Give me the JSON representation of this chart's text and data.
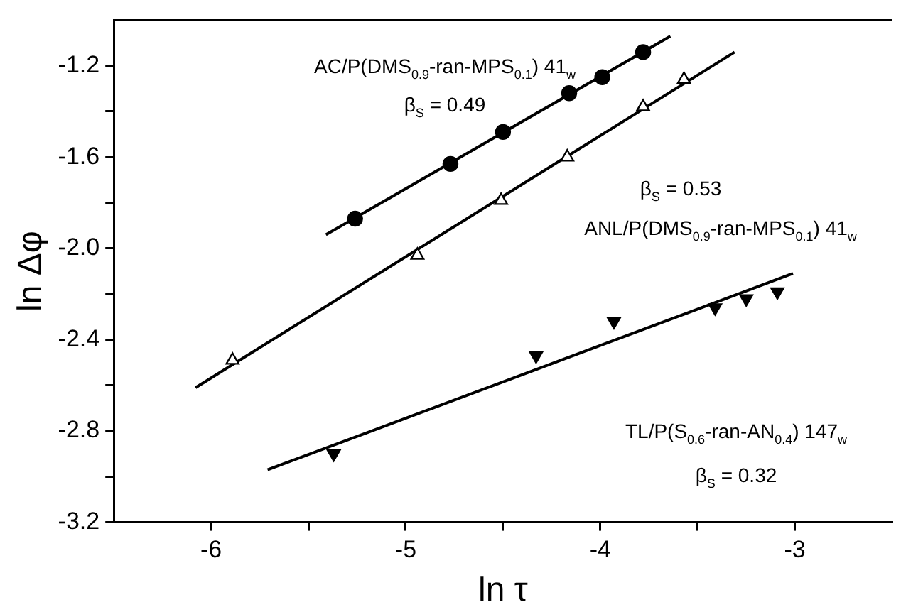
{
  "chart_data": {
    "type": "scatter",
    "xlabel": "ln τ",
    "ylabel": "ln Δφ",
    "xlim": [
      -6.5,
      -2.5
    ],
    "ylim": [
      -3.2,
      -1.0
    ],
    "xticks": [
      -6,
      {
        "value": -5.5,
        "label": null
      },
      -5,
      {
        "value": -4.5,
        "label": null
      },
      -4,
      {
        "value": -3.5,
        "label": null
      },
      -3
    ],
    "yticks": [
      -3.2,
      {
        "value": -3.0,
        "label": null
      },
      -2.8,
      {
        "value": -2.6,
        "label": null
      },
      -2.4,
      {
        "value": -2.2,
        "label": null
      },
      {
        "value": -2.0,
        "label": "-2.0"
      },
      {
        "value": -1.8,
        "label": null
      },
      -1.6,
      {
        "value": -1.4,
        "label": null
      },
      -1.2
    ],
    "grid": false,
    "legend": false,
    "series": [
      {
        "marker": "circle",
        "color": "#000000",
        "x": [
          -5.26,
          -4.77,
          -4.5,
          -4.16,
          -3.99,
          -3.78
        ],
        "values": [
          -1.87,
          -1.63,
          -1.49,
          -1.32,
          -1.25,
          -1.14
        ]
      },
      {
        "marker": "triangle",
        "color": "#000000",
        "x": [
          -5.89,
          -4.94,
          -4.51,
          -4.17,
          -3.78,
          -3.57
        ],
        "values": [
          -2.49,
          -2.03,
          -1.79,
          -1.6,
          -1.38,
          -1.26
        ]
      },
      {
        "marker": "triangle",
        "color": "#000000",
        "x": [
          -5.37,
          -4.33,
          -3.93,
          -3.41,
          -3.25,
          -3.09
        ],
        "values": [
          -2.9,
          -2.47,
          -2.32,
          -2.26,
          -2.22,
          -2.19
        ]
      },
      {
        "type": "line",
        "marker": "none",
        "color": "#000000",
        "x": [
          -5.41,
          -3.64
        ],
        "values": [
          -1.94,
          -1.07
        ]
      },
      {
        "type": "line",
        "marker": "none",
        "color": "#000000",
        "x": [
          -6.08,
          -3.31
        ],
        "values": [
          -2.61,
          -1.14
        ]
      },
      {
        "type": "line",
        "marker": "none",
        "color": "#000000",
        "x": [
          -5.71,
          -3.01
        ],
        "values": [
          -2.97,
          -2.11
        ]
      }
    ],
    "annotations": [
      "AC/P(DMS$_{0.9}$-ran-MPS$_{0.1}$) 41$_{w}$",
      "β$_{S}$ = 0.49",
      "β$_{S}$ = 0.53",
      "ANL/P(DMS$_{0.9}$-ran-MPS$_{0.1}$) 41$_{w}$",
      "TL/P(S$_{0.6}$-ran-AN$_{0.4}$) 147$_{w}$",
      "β$_{S}$ = 0.32"
    ]
  }
}
